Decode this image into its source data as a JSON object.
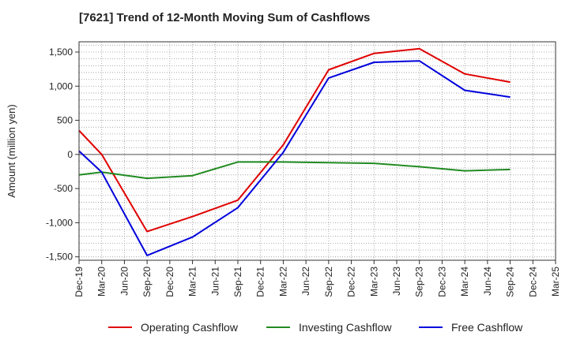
{
  "chart_data": {
    "type": "line",
    "title": "[7621]  Trend of 12-Month Moving Sum of Cashflows",
    "xlabel": "",
    "ylabel": "Amount (million yen)",
    "ylim": [
      -1550,
      1650
    ],
    "yticks": [
      -1500,
      -1000,
      -500,
      0,
      500,
      1000,
      1500
    ],
    "ytick_labels": [
      "-1,500",
      "-1,000",
      "-500",
      "0",
      "500",
      "1,000",
      "1,500"
    ],
    "categories": [
      "Dec-19",
      "Mar-20",
      "Jun-20",
      "Sep-20",
      "Dec-20",
      "Mar-21",
      "Jun-21",
      "Sep-21",
      "Dec-21",
      "Mar-22",
      "Jun-22",
      "Sep-22",
      "Dec-22",
      "Mar-23",
      "Jun-23",
      "Sep-23",
      "Dec-23",
      "Mar-24",
      "Jun-24",
      "Sep-24",
      "Dec-24",
      "Mar-25"
    ],
    "grid": true,
    "legend_position": "bottom",
    "series": [
      {
        "name": "Operating Cashflow",
        "color": "#e00000",
        "values": [
          350,
          0,
          null,
          -1130,
          null,
          -910,
          null,
          -670,
          null,
          140,
          null,
          1240,
          null,
          1480,
          null,
          1550,
          null,
          1180,
          null,
          1060,
          null,
          null
        ]
      },
      {
        "name": "Investing Cashflow",
        "color": "#228b22",
        "values": [
          -300,
          -260,
          null,
          -350,
          null,
          -310,
          null,
          -110,
          null,
          -110,
          null,
          -120,
          null,
          -130,
          null,
          -180,
          null,
          -240,
          null,
          -220,
          null,
          null
        ]
      },
      {
        "name": "Free Cashflow",
        "color": "#0000dd",
        "values": [
          50,
          -260,
          null,
          -1480,
          null,
          -1210,
          null,
          -780,
          null,
          30,
          null,
          1120,
          null,
          1350,
          null,
          1370,
          null,
          940,
          null,
          840,
          null,
          null
        ]
      }
    ]
  }
}
